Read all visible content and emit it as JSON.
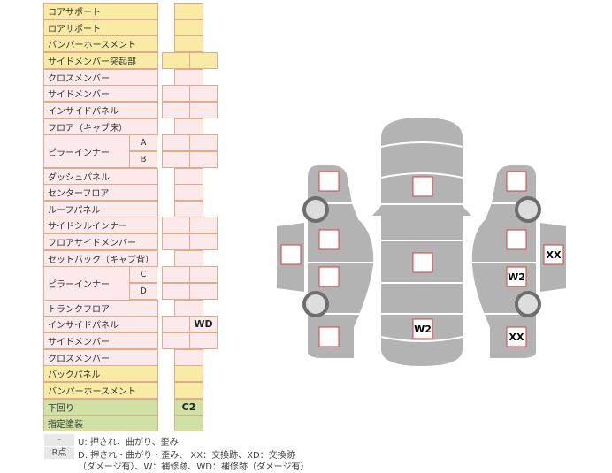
{
  "rows": [
    {
      "label": "コアサポート",
      "kind": "single",
      "color": "y",
      "values": [
        ""
      ]
    },
    {
      "label": "ロアサポート",
      "kind": "single",
      "color": "y",
      "values": [
        ""
      ]
    },
    {
      "label": "バンパーホースメント",
      "kind": "single",
      "color": "y",
      "values": [
        ""
      ]
    },
    {
      "label": "サイドメンバー突起部",
      "kind": "double",
      "color": "y",
      "values": [
        "",
        ""
      ]
    },
    {
      "label": "クロスメンバー",
      "kind": "single",
      "color": "p",
      "values": [
        ""
      ]
    },
    {
      "label": "サイドメンバー",
      "kind": "double",
      "color": "p",
      "values": [
        "",
        ""
      ]
    },
    {
      "label": "インサイドパネル",
      "kind": "double",
      "color": "p",
      "values": [
        "",
        ""
      ]
    },
    {
      "label": "フロア（キャブ床）",
      "kind": "single",
      "color": "p",
      "values": [
        ""
      ]
    },
    {
      "label": "ピラーインナー",
      "sub": "A",
      "kind": "double",
      "color": "p",
      "values": [
        "",
        ""
      ]
    },
    {
      "label": "",
      "sub": "B",
      "kind": "double",
      "color": "p",
      "values": [
        "",
        ""
      ]
    },
    {
      "label": "ダッシュパネル",
      "kind": "single",
      "color": "p",
      "values": [
        ""
      ]
    },
    {
      "label": "センターフロア",
      "kind": "single",
      "color": "p",
      "values": [
        ""
      ]
    },
    {
      "label": "ルーフパネル",
      "kind": "single",
      "color": "p",
      "values": [
        ""
      ]
    },
    {
      "label": "サイドシルインナー",
      "kind": "double",
      "color": "p",
      "values": [
        "",
        ""
      ]
    },
    {
      "label": "フロアサイドメンバー",
      "kind": "double",
      "color": "p",
      "values": [
        "",
        ""
      ]
    },
    {
      "label": "セットバック（キャブ背）",
      "kind": "single",
      "color": "p",
      "values": [
        ""
      ]
    },
    {
      "label": "ピラーインナー",
      "sub": "C",
      "kind": "double",
      "color": "p",
      "values": [
        "",
        ""
      ]
    },
    {
      "label": "",
      "sub": "D",
      "kind": "double",
      "color": "p",
      "values": [
        "",
        ""
      ]
    },
    {
      "label": "トランクフロア",
      "kind": "single",
      "color": "p",
      "values": [
        ""
      ]
    },
    {
      "label": "インサイドパネル",
      "kind": "double",
      "color": "p",
      "values": [
        "",
        "WD"
      ]
    },
    {
      "label": "サイドメンバー",
      "kind": "double",
      "color": "p",
      "values": [
        "",
        ""
      ]
    },
    {
      "label": "クロスメンバー",
      "kind": "single",
      "color": "p",
      "values": [
        ""
      ]
    },
    {
      "label": "バックパネル",
      "kind": "single",
      "color": "y",
      "values": [
        ""
      ]
    },
    {
      "label": "バンパーホースメント",
      "kind": "single",
      "color": "y",
      "values": [
        ""
      ]
    },
    {
      "label": "下回り",
      "kind": "single",
      "color": "g",
      "values": [
        "C2"
      ]
    },
    {
      "label": "指定塗装",
      "kind": "single",
      "color": "g",
      "values": [
        ""
      ]
    }
  ],
  "legend": [
    {
      "key": "-",
      "text": "U: 押され、曲がり、歪み"
    },
    {
      "key": "R点",
      "text": "D: 押され・曲がり・歪み、 XX：交換跡、XD：交換跡",
      "text2": "（ダメージ有）、W：補修跡、WD：補修跡（ダメージ有）"
    }
  ],
  "diagram": {
    "body_color": "#b3b3b3",
    "mark_border_color": "#d04040",
    "marks": {
      "left_front": "",
      "left_front_door": "",
      "left_rear_door": "",
      "left_mirror": "",
      "left_rear": "",
      "hood": "",
      "roof": "",
      "trunk": "W2",
      "right_front": "",
      "right_front_door": "",
      "right_rear_door": "W2",
      "right_mirror": "XX",
      "right_rear": "XX"
    }
  }
}
